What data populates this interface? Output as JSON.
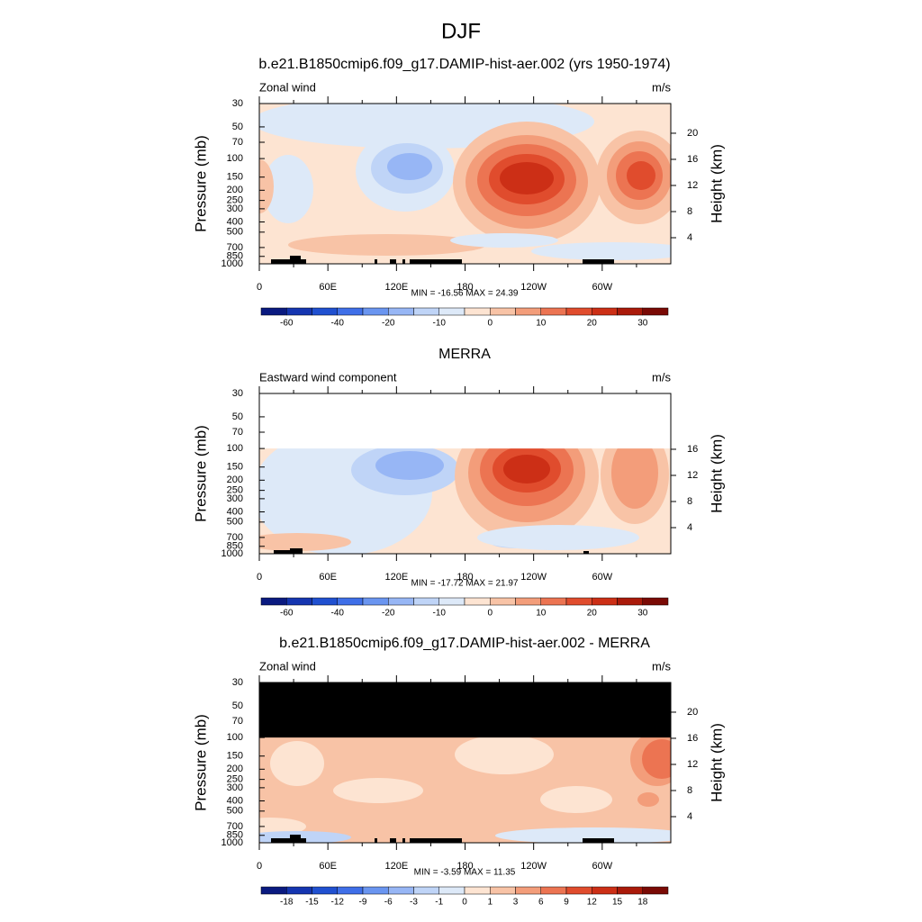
{
  "title": "DJF",
  "chart_data": [
    {
      "type": "contour",
      "title": "b.e21.B1850cmip6.f09_g17.DAMIP-hist-aer.002 (yrs 1950-1974)",
      "left_label": "Zonal wind",
      "right_label": "m/s",
      "ylabel": "Pressure (mb)",
      "y2label": "Height (km)",
      "ylim": [
        1000,
        30
      ],
      "log_y": true,
      "yticks": [
        30,
        50,
        70,
        100,
        150,
        200,
        250,
        300,
        400,
        500,
        700,
        850,
        1000
      ],
      "y2ticks": [
        20,
        16,
        12,
        8,
        4
      ],
      "xlim": [
        0,
        360
      ],
      "xticks": [
        0,
        {
          "value": 60,
          "label": "60E"
        },
        {
          "value": 120,
          "label": "120E"
        },
        180,
        {
          "value": 240,
          "label": "120W"
        },
        {
          "value": 300,
          "label": "60W"
        }
      ],
      "xminorticks": [
        30,
        90,
        150,
        210,
        270,
        330
      ],
      "stats": "MIN = -16.56  MAX =  24.39",
      "colorbar": {
        "colors": [
          "#0a1a80",
          "#1535b0",
          "#2050d0",
          "#3f6fe8",
          "#6a95f0",
          "#97b6f5",
          "#bfd4f7",
          "#dde9f8",
          "#fde4d2",
          "#f8c3a6",
          "#f39d7a",
          "#ec7452",
          "#e04c2d",
          "#cc2f16",
          "#aa1a0a",
          "#7a0a05"
        ],
        "labels": [
          -60,
          null,
          -40,
          null,
          -20,
          null,
          -10,
          null,
          0,
          null,
          10,
          null,
          20,
          null,
          30
        ]
      }
    },
    {
      "type": "contour",
      "title": "MERRA",
      "left_label": "Eastward wind component",
      "right_label": "m/s",
      "ylabel": "Pressure (mb)",
      "y2label": "Height (km)",
      "ylim": [
        1000,
        30
      ],
      "log_y": true,
      "yticks": [
        30,
        50,
        70,
        100,
        150,
        200,
        250,
        300,
        400,
        500,
        700,
        850,
        1000
      ],
      "y2ticks": [
        16,
        12,
        8,
        4
      ],
      "xlim": [
        0,
        360
      ],
      "xticks": [
        0,
        {
          "value": 60,
          "label": "60E"
        },
        {
          "value": 120,
          "label": "120E"
        },
        180,
        {
          "value": 240,
          "label": "120W"
        },
        {
          "value": 300,
          "label": "60W"
        }
      ],
      "xminorticks": [
        30,
        90,
        150,
        210,
        270,
        330
      ],
      "stats": "MIN = -17.72  MAX =  21.97",
      "colorbar": {
        "colors": [
          "#0a1a80",
          "#1535b0",
          "#2050d0",
          "#3f6fe8",
          "#6a95f0",
          "#97b6f5",
          "#bfd4f7",
          "#dde9f8",
          "#fde4d2",
          "#f8c3a6",
          "#f39d7a",
          "#ec7452",
          "#e04c2d",
          "#cc2f16",
          "#aa1a0a",
          "#7a0a05"
        ],
        "labels": [
          -60,
          null,
          -40,
          null,
          -20,
          null,
          -10,
          null,
          0,
          null,
          10,
          null,
          20,
          null,
          30
        ]
      }
    },
    {
      "type": "contour",
      "title": "b.e21.B1850cmip6.f09_g17.DAMIP-hist-aer.002 - MERRA",
      "left_label": "Zonal wind",
      "right_label": "m/s",
      "ylabel": "Pressure (mb)",
      "y2label": "Height (km)",
      "ylim": [
        1000,
        30
      ],
      "log_y": true,
      "yticks": [
        30,
        50,
        70,
        100,
        150,
        200,
        250,
        300,
        400,
        500,
        700,
        850,
        1000
      ],
      "y2ticks": [
        20,
        16,
        12,
        8,
        4
      ],
      "xlim": [
        0,
        360
      ],
      "xticks": [
        0,
        {
          "value": 60,
          "label": "60E"
        },
        {
          "value": 120,
          "label": "120E"
        },
        180,
        {
          "value": 240,
          "label": "120W"
        },
        {
          "value": 300,
          "label": "60W"
        }
      ],
      "xminorticks": [
        30,
        90,
        150,
        210,
        270,
        330
      ],
      "stats": "MIN = -3.59  MAX = 11.35",
      "colorbar": {
        "colors": [
          "#0a1a80",
          "#1535b0",
          "#2050d0",
          "#3f6fe8",
          "#6a95f0",
          "#97b6f5",
          "#bfd4f7",
          "#dde9f8",
          "#fde4d2",
          "#f8c3a6",
          "#f39d7a",
          "#ec7452",
          "#e04c2d",
          "#cc2f16",
          "#aa1a0a",
          "#7a0a05"
        ],
        "labels": [
          -18,
          -15,
          -12,
          -9,
          -6,
          -3,
          -1,
          0,
          1,
          3,
          6,
          9,
          12,
          15,
          18
        ]
      }
    }
  ]
}
